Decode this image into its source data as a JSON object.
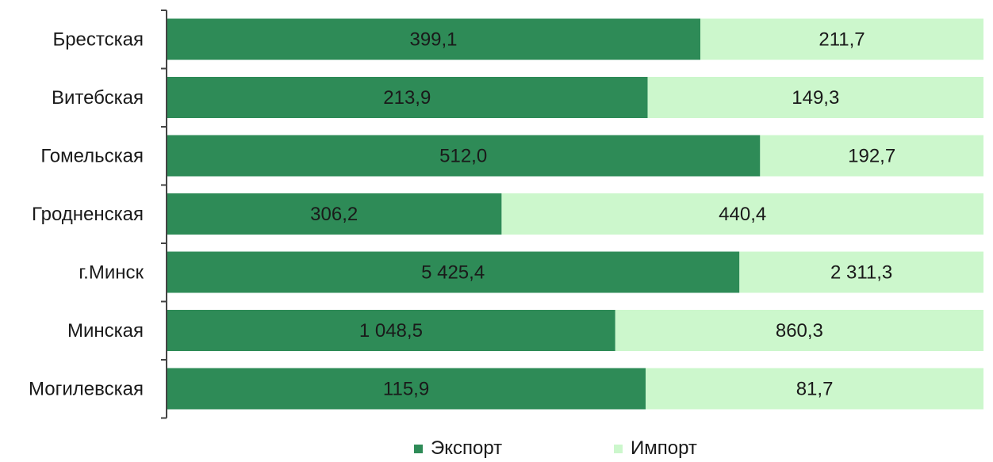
{
  "colors": {
    "export": "#2e8b57",
    "import": "#ccf7cc",
    "axis": "#444444"
  },
  "legend": {
    "export_label": "Экспорт",
    "import_label": "Импорт"
  },
  "chart_data": {
    "type": "bar",
    "orientation": "horizontal",
    "stacked": "percent",
    "categories": [
      "Брестская",
      "Витебская",
      "Гомельская",
      "Гродненская",
      "г.Минск",
      "Минская",
      "Могилевская"
    ],
    "series": [
      {
        "name": "Экспорт",
        "values": [
          399.1,
          213.9,
          512.0,
          306.2,
          5425.4,
          1048.5,
          115.9
        ],
        "labels": [
          "399,1",
          "213,9",
          "512,0",
          "306,2",
          "5 425,4",
          "1 048,5",
          "115,9"
        ]
      },
      {
        "name": "Импорт",
        "values": [
          211.7,
          149.3,
          192.7,
          440.4,
          2311.3,
          860.3,
          81.7
        ],
        "labels": [
          "211,7",
          "149,3",
          "192,7",
          "440,4",
          "2 311,3",
          "860,3",
          "81,7"
        ]
      }
    ],
    "legend_position": "bottom",
    "grid": false
  }
}
